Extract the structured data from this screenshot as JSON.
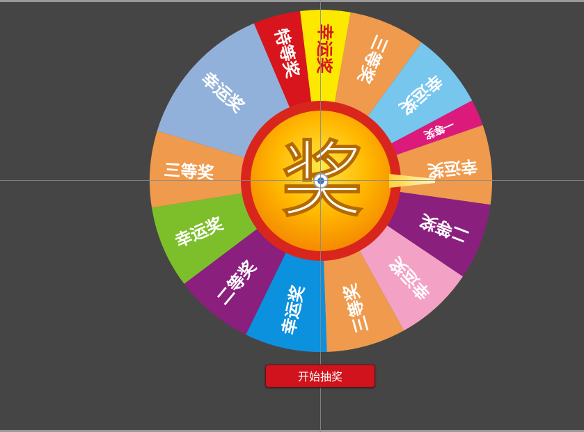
{
  "colors": {
    "background": "#454545",
    "ring": "#d8261d",
    "button": "#d0131c"
  },
  "wheel": {
    "center_label": "奖",
    "segments": [
      {
        "label": "幸运奖",
        "color": "#fde800",
        "text_color": "#d8151c"
      },
      {
        "label": "三等奖",
        "color": "#f09a4d",
        "text_color": "#ffffff"
      },
      {
        "label": "幸运奖",
        "color": "#77c6ee",
        "text_color": "#ffffff"
      },
      {
        "label": "一等奖",
        "color": "#db1a7c",
        "text_color": "#ffffff"
      },
      {
        "label": "幸运奖",
        "color": "#f09a4d",
        "text_color": "#ffffff"
      },
      {
        "label": "二等奖",
        "color": "#8b1f7e",
        "text_color": "#ffffff"
      },
      {
        "label": "幸运奖",
        "color": "#f3a2c6",
        "text_color": "#ffffff"
      },
      {
        "label": "三等奖",
        "color": "#f09a4d",
        "text_color": "#ffffff"
      },
      {
        "label": "幸运奖",
        "color": "#0c91de",
        "text_color": "#ffffff"
      },
      {
        "label": "二等奖",
        "color": "#8b1f7e",
        "text_color": "#ffffff"
      },
      {
        "label": "幸运奖",
        "color": "#7dbf2b",
        "text_color": "#ffffff"
      },
      {
        "label": "三等奖",
        "color": "#f09a4d",
        "text_color": "#ffffff"
      },
      {
        "label": "幸运奖",
        "color": "#92b1da",
        "text_color": "#ffffff"
      },
      {
        "label": "特等奖",
        "color": "#d8151c",
        "text_color": "#ffffff"
      }
    ]
  },
  "controls": {
    "start_button_label": "开始抽奖"
  },
  "icons": {
    "pointer": "pointer-needle-icon"
  }
}
